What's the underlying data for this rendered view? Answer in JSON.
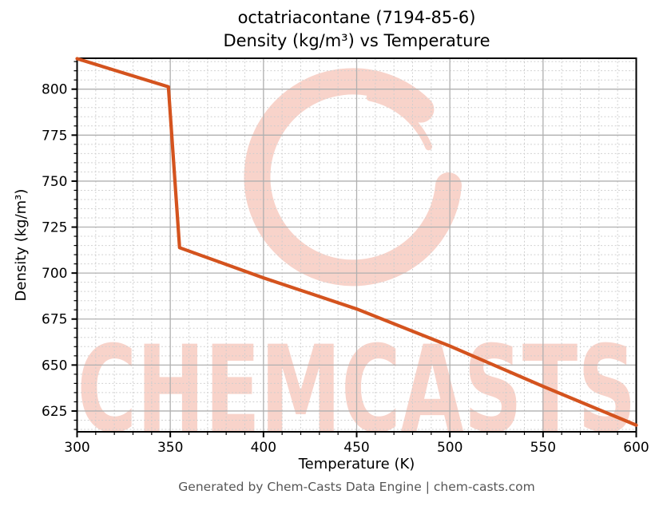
{
  "chart_data": {
    "type": "line",
    "title_line1": "octatriacontane (7194-85-6)",
    "title_line2": "Density (kg/m³) vs Temperature",
    "xlabel": "Temperature (K)",
    "ylabel": "Density (kg/m³)",
    "xlim": [
      300,
      600
    ],
    "ylim": [
      613.7,
      816.8
    ],
    "xticks": [
      300,
      350,
      400,
      450,
      500,
      550,
      600
    ],
    "yticks": [
      625,
      650,
      675,
      700,
      725,
      750,
      775,
      800
    ],
    "x_minor_step": 10,
    "y_minor_step": 5,
    "grid": true,
    "legend_position": "none",
    "series": [
      {
        "name": "density",
        "color": "#d4531e",
        "x": [
          300,
          349,
          355,
          400,
          450,
          500,
          550,
          600
        ],
        "y": [
          816.6,
          801.3,
          713.8,
          697.4,
          680.5,
          660.3,
          638.4,
          617.3
        ]
      }
    ],
    "colors": {
      "major_grid": "#b0b0b0",
      "minor_grid": "#cdcdcd",
      "spine": "#000000",
      "tick_label": "#000000"
    }
  },
  "watermark": {
    "brand_text": "CHEMCASTS",
    "color": "#f8d3ca"
  },
  "footer": {
    "text": "Generated by Chem-Casts Data Engine | chem-casts.com"
  }
}
